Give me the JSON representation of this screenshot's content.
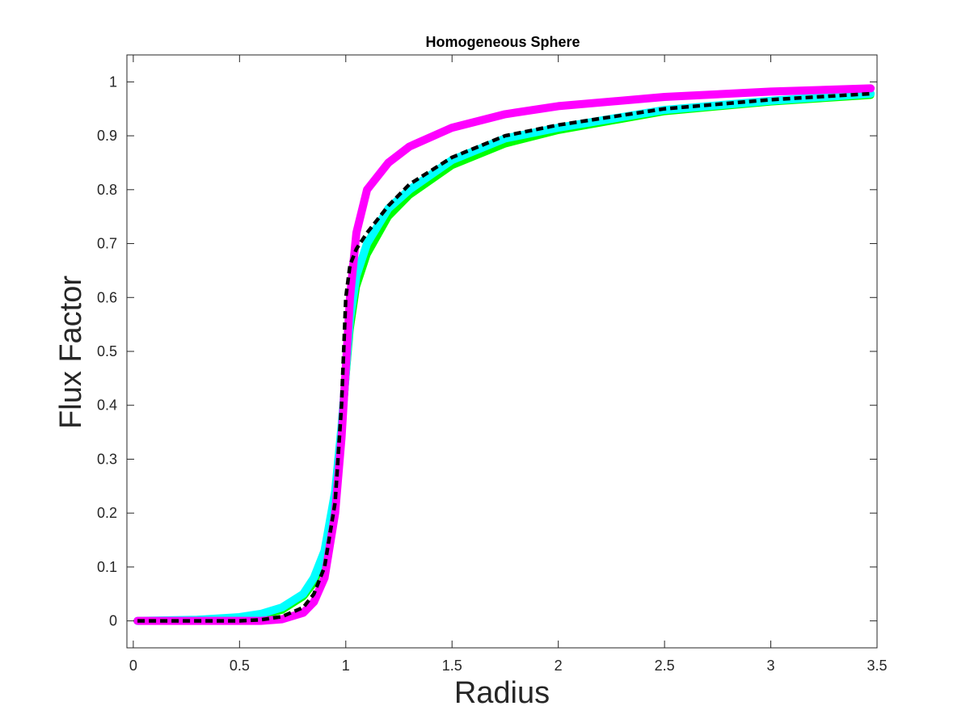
{
  "chart_data": {
    "type": "line",
    "title": "Homogeneous Sphere",
    "xlabel": "Radius",
    "ylabel": "Flux Factor",
    "xlim": [
      -0.03,
      3.5
    ],
    "ylim": [
      -0.05,
      1.05
    ],
    "grid": false,
    "legend": "none",
    "x_ticks": [
      0,
      0.5,
      1,
      1.5,
      2,
      2.5,
      3,
      3.5
    ],
    "x_tick_labels": [
      "0",
      "0.5",
      "1",
      "1.5",
      "2",
      "2.5",
      "3",
      "3.5"
    ],
    "y_ticks": [
      0,
      0.1,
      0.2,
      0.3,
      0.4,
      0.5,
      0.6,
      0.7,
      0.8,
      0.9,
      1
    ],
    "y_tick_labels": [
      "0",
      "0.1",
      "0.2",
      "0.3",
      "0.4",
      "0.5",
      "0.6",
      "0.7",
      "0.8",
      "0.9",
      "1"
    ],
    "series": [
      {
        "color": "#00ff00",
        "style": "solid-thick",
        "x": [
          0.02,
          0.3,
          0.5,
          0.6,
          0.7,
          0.8,
          0.85,
          0.9,
          0.95,
          0.98,
          1.0,
          1.02,
          1.05,
          1.1,
          1.2,
          1.3,
          1.5,
          1.75,
          2.0,
          2.5,
          3.0,
          3.47
        ],
        "y": [
          0.0,
          0.0,
          0.004,
          0.01,
          0.02,
          0.045,
          0.07,
          0.12,
          0.23,
          0.35,
          0.45,
          0.54,
          0.62,
          0.68,
          0.75,
          0.79,
          0.845,
          0.885,
          0.91,
          0.945,
          0.963,
          0.975
        ]
      },
      {
        "color": "#00ffff",
        "style": "solid-thick",
        "x": [
          0.02,
          0.3,
          0.5,
          0.6,
          0.7,
          0.8,
          0.85,
          0.9,
          0.95,
          0.98,
          1.0,
          1.02,
          1.05,
          1.1,
          1.2,
          1.3,
          1.5,
          1.75,
          2.0,
          2.5,
          3.0,
          3.47
        ],
        "y": [
          0.0,
          0.002,
          0.007,
          0.013,
          0.025,
          0.05,
          0.08,
          0.13,
          0.24,
          0.36,
          0.46,
          0.56,
          0.64,
          0.7,
          0.765,
          0.8,
          0.855,
          0.895,
          0.915,
          0.948,
          0.965,
          0.978
        ]
      },
      {
        "color": "#ff00ff",
        "style": "solid-thick",
        "x": [
          0.02,
          0.3,
          0.5,
          0.6,
          0.7,
          0.8,
          0.85,
          0.9,
          0.95,
          0.98,
          1.0,
          1.02,
          1.05,
          1.1,
          1.2,
          1.3,
          1.5,
          1.75,
          2.0,
          2.5,
          3.0,
          3.47
        ],
        "y": [
          0.0,
          0.0,
          0.0,
          0.0,
          0.003,
          0.015,
          0.035,
          0.08,
          0.2,
          0.34,
          0.47,
          0.6,
          0.72,
          0.8,
          0.85,
          0.88,
          0.915,
          0.94,
          0.955,
          0.972,
          0.982,
          0.988
        ]
      },
      {
        "color": "#000000",
        "style": "dashed",
        "x": [
          0.02,
          0.3,
          0.5,
          0.6,
          0.7,
          0.8,
          0.85,
          0.9,
          0.95,
          0.98,
          1.0,
          1.02,
          1.05,
          1.1,
          1.2,
          1.3,
          1.5,
          1.75,
          2.0,
          2.5,
          3.0,
          3.47
        ],
        "y": [
          0.0,
          0.0,
          0.0,
          0.002,
          0.008,
          0.025,
          0.05,
          0.1,
          0.22,
          0.4,
          0.6,
          0.66,
          0.69,
          0.72,
          0.77,
          0.81,
          0.86,
          0.9,
          0.92,
          0.95,
          0.967,
          0.978
        ]
      }
    ]
  }
}
